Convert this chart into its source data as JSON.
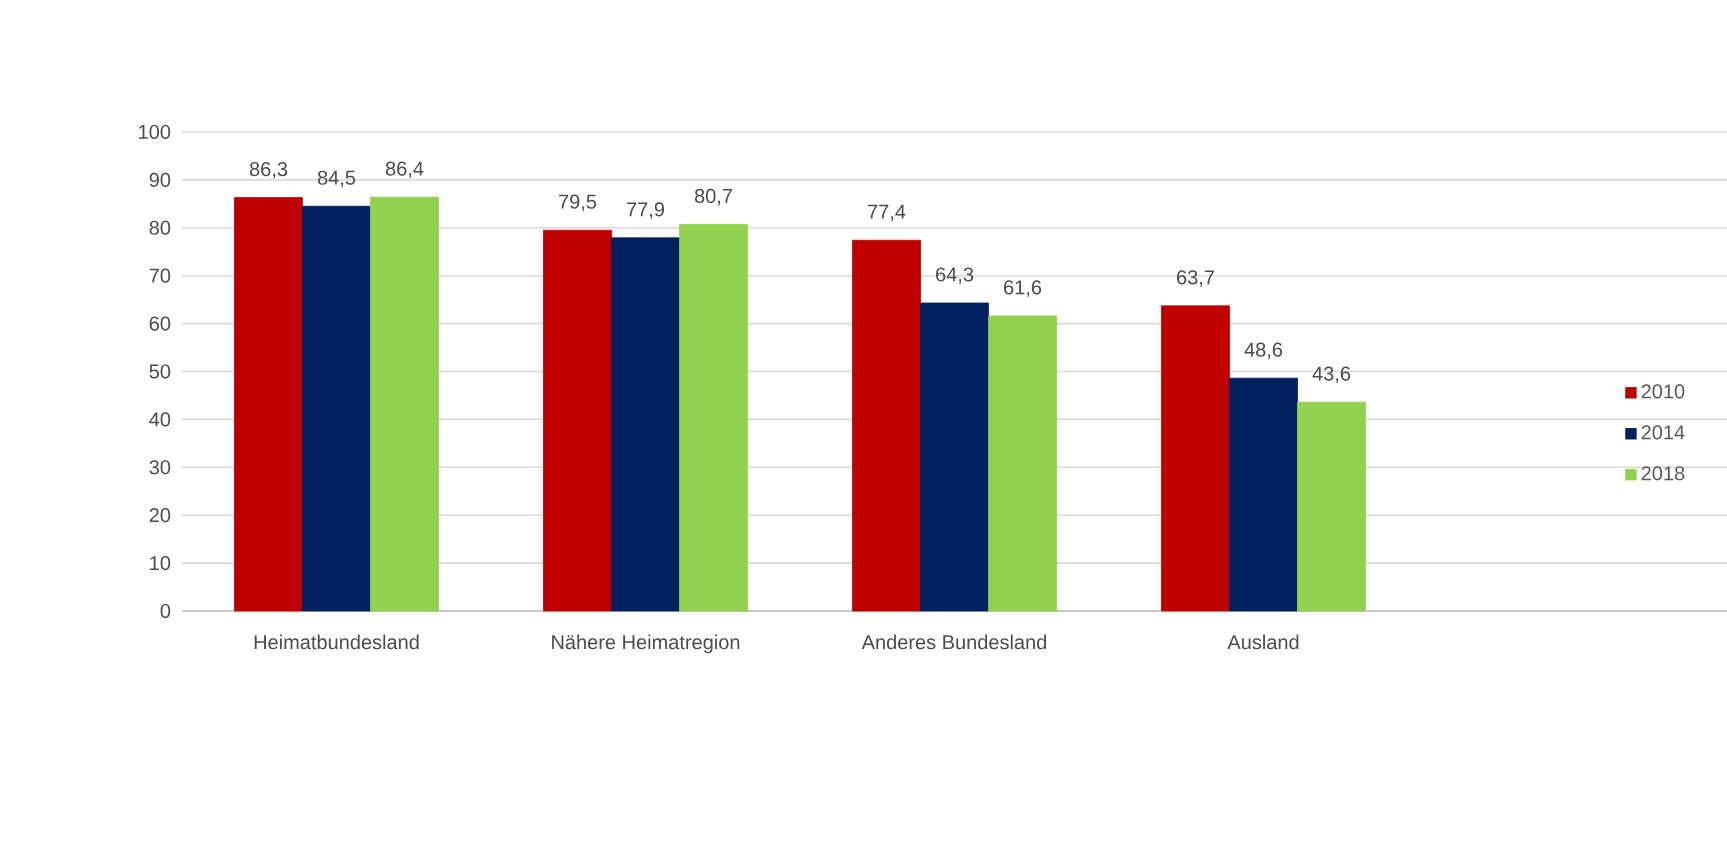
{
  "chart_data": {
    "type": "bar",
    "categories": [
      "Heimatbundesland",
      "Nähere Heimatregion",
      "Anderes Bundesland",
      "Ausland"
    ],
    "series": [
      {
        "name": "2010",
        "color": "#c00000",
        "values": [
          86.3,
          79.5,
          77.4,
          63.7
        ],
        "value_labels": [
          "86,3",
          "79,5",
          "77,4",
          "63,7"
        ]
      },
      {
        "name": "2014",
        "color": "#002060",
        "values": [
          84.5,
          77.9,
          64.3,
          48.6
        ],
        "value_labels": [
          "84,5",
          "77,9",
          "64,3",
          "48,6"
        ]
      },
      {
        "name": "2018",
        "color": "#92d050",
        "values": [
          86.4,
          80.7,
          61.6,
          43.6
        ],
        "value_labels": [
          "86,4",
          "80,7",
          "61,6",
          "43,6"
        ]
      }
    ],
    "ylim": [
      0,
      100
    ],
    "yticks": [
      0,
      10,
      20,
      30,
      40,
      50,
      60,
      70,
      80,
      90,
      100
    ],
    "grid": "y",
    "legend": "right"
  }
}
